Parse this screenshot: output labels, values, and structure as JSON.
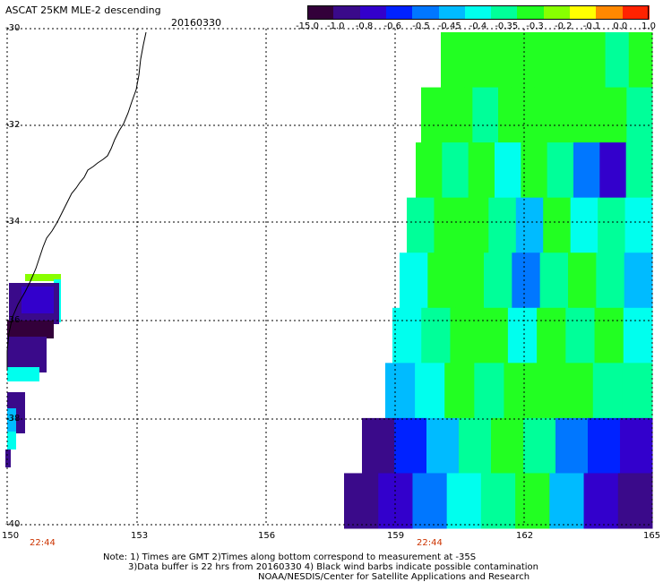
{
  "header": {
    "title": "ASCAT 25KM MLE-2 descending",
    "date": "20160330"
  },
  "colorbar": {
    "labels": [
      "-15.0",
      "-1.0",
      "-0.8",
      "-0.6",
      "-0.5",
      "-0.45",
      "-0.4",
      "-0.35",
      "-0.3",
      "-0.2",
      "-0.1",
      "0.0",
      "1.0"
    ],
    "colors": [
      "#33003a",
      "#3a0a8a",
      "#3300cc",
      "#0022ff",
      "#0077ff",
      "#00bbff",
      "#00ffee",
      "#00ff99",
      "#22ff22",
      "#88ff00",
      "#ffff00",
      "#ff8800",
      "#ff2200"
    ]
  },
  "axes": {
    "lat_labels": [
      "-30",
      "-32",
      "-34",
      "-36",
      "-38",
      "-40"
    ],
    "lon_labels": [
      "150",
      "153",
      "156",
      "159",
      "162",
      "165"
    ]
  },
  "times": [
    "22:44",
    "22:44"
  ],
  "notes": {
    "line1": "Note: 1) Times are GMT 2)Times along bottom correspond to measurement at -35S",
    "line2": "3)Data buffer is 22 hrs from 20160330 4) Black wind barbs indicate possible contamination",
    "line3": "NOAA/NESDIS/Center for Satellite Applications and Research"
  },
  "field": {
    "cells": [
      [
        "#22ff22",
        "#22ff22",
        "#22ff22",
        "#22ff22",
        "#22ff22",
        "#22ff22",
        "#22ff22",
        "#00ff99",
        "#22ff22"
      ],
      [
        "#22ff22",
        "#22ff22",
        "#00ff99",
        "#22ff22",
        "#22ff22",
        "#22ff22",
        "#22ff22",
        "#22ff22",
        "#00ff99"
      ],
      [
        "#22ff22",
        "#00ff99",
        "#22ff22",
        "#00ffee",
        "#22ff22",
        "#00ff99",
        "#0077ff",
        "#3300cc",
        "#00ff99"
      ],
      [
        "#00ff99",
        "#22ff22",
        "#22ff22",
        "#00ff99",
        "#00bbff",
        "#22ff22",
        "#00ffee",
        "#00ff99",
        "#00ffee"
      ],
      [
        "#00ffee",
        "#22ff22",
        "#22ff22",
        "#00ff99",
        "#0077ff",
        "#00ff99",
        "#22ff22",
        "#00ff99",
        "#00bbff"
      ],
      [
        "#00ffee",
        "#00ff99",
        "#22ff22",
        "#22ff22",
        "#00ffee",
        "#22ff22",
        "#00ff99",
        "#22ff22",
        "#00ffee"
      ],
      [
        "#00bbff",
        "#00ffee",
        "#22ff22",
        "#00ff99",
        "#22ff22",
        "#22ff22",
        "#22ff22",
        "#00ff99",
        "#00ff99"
      ],
      [
        "#3a0a8a",
        "#0022ff",
        "#00bbff",
        "#00ff99",
        "#22ff22",
        "#00ff99",
        "#0077ff",
        "#0022ff",
        "#3300cc"
      ],
      [
        "#3a0a8a",
        "#3300cc",
        "#0077ff",
        "#00ffee",
        "#00ff99",
        "#22ff22",
        "#00bbff",
        "#3300cc",
        "#3a0a8a"
      ]
    ]
  }
}
